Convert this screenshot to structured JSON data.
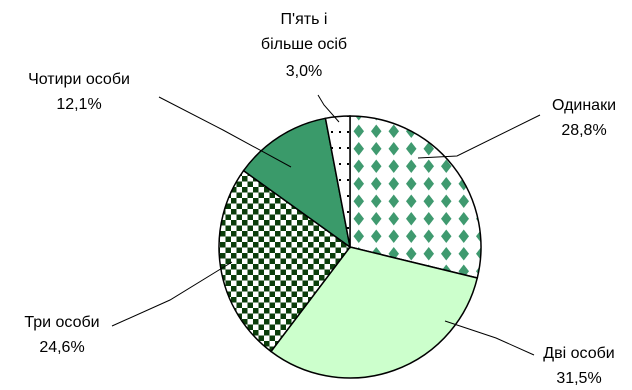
{
  "chart_data": {
    "type": "pie",
    "slices": [
      {
        "name": "Одинаки",
        "value": 28.8,
        "label_line1": "Одинаки",
        "label_line2": "28,8%",
        "pattern": "diamond-grid",
        "color": "#3f9a6f"
      },
      {
        "name": "Дві особи",
        "value": 31.5,
        "label_line1": "Дві особи",
        "label_line2": "31,5%",
        "pattern": "solid",
        "color": "#ccffcc"
      },
      {
        "name": "Три особи",
        "value": 24.6,
        "label_line1": "Три особи",
        "label_line2": "24,6%",
        "pattern": "checkerboard",
        "color": "#0b3d0b"
      },
      {
        "name": "Чотири особи",
        "value": 12.1,
        "label_line1": "Чотири особи",
        "label_line2": "12,1%",
        "pattern": "solid",
        "color": "#3a9a6a"
      },
      {
        "name": "П'ять і більше осіб",
        "value": 3.0,
        "label_line1": "П'ять і",
        "label_line2": "більше осіб",
        "label_line3": "3,0%",
        "pattern": "dotted",
        "color": "#ffffff"
      }
    ]
  }
}
